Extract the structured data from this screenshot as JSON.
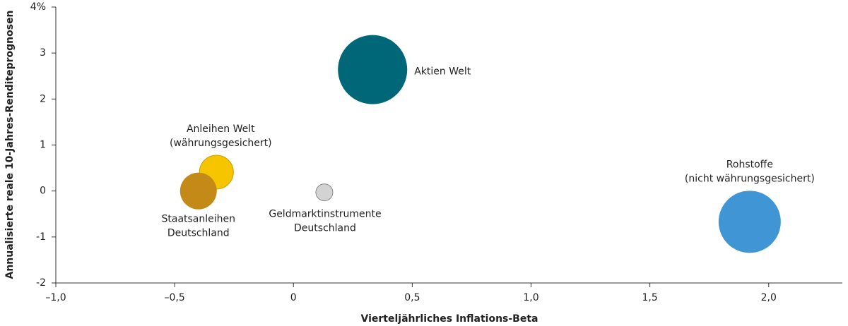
{
  "chart_data": {
    "type": "bubble",
    "xlabel": "Vierteljährliches Inflations-Beta",
    "ylabel": "Annualisierte reale 10-Jahres-Renditeprognosen",
    "xlim": [
      -1.0,
      2.31
    ],
    "ylim": [
      -2,
      4
    ],
    "xticks": [
      {
        "value": -1.0,
        "label": "–1,0"
      },
      {
        "value": -0.5,
        "label": "–0,5"
      },
      0,
      {
        "value": 0.5,
        "label": "0,5"
      },
      {
        "value": 1.0,
        "label": "1,0"
      },
      {
        "value": 1.5,
        "label": "1,5"
      },
      {
        "value": 2.0,
        "label": "2,0"
      }
    ],
    "yticks": [
      -2,
      -1,
      0,
      1,
      2,
      3,
      {
        "value": 4,
        "label": "4%"
      }
    ],
    "points": [
      {
        "label": [
          "Aktien Welt"
        ],
        "x": 0.333,
        "y": 2.64,
        "size": 49,
        "color": "#006778"
      },
      {
        "label": [
          "Anleihen Welt",
          "(währungsgesichert)"
        ],
        "x": -0.324,
        "y": 0.41,
        "size": 24,
        "color": "#f7c400"
      },
      {
        "label": [
          "Staatsanleihen",
          "Deutschland"
        ],
        "x": -0.4,
        "y": 0.0,
        "size": 26,
        "color": "#c48a17"
      },
      {
        "label": [
          "Geldmarktinstrumente",
          "Deutschland"
        ],
        "x": 0.13,
        "y": -0.03,
        "size": 12,
        "color": "#d3d3d3"
      },
      {
        "label": [
          "Rohstoffe",
          "(nicht währungsgesichert)"
        ],
        "x": 1.92,
        "y": -0.67,
        "size": 44,
        "color": "#4096d4"
      }
    ]
  }
}
